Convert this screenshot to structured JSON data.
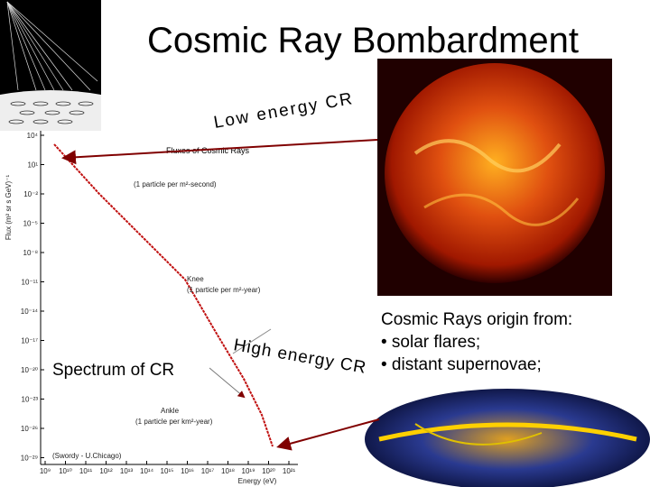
{
  "title": "Cosmic Ray Bombardment",
  "labels": {
    "low_energy": "Low energy CR",
    "high_energy": "High energy CR",
    "spectrum": "Spectrum of CR"
  },
  "origin": {
    "heading": "Cosmic Rays origin from:",
    "items": [
      "• solar flares;",
      "• distant supernovae;"
    ]
  },
  "spectrum_plot": {
    "title": "Fluxes of Cosmic Rays",
    "annotations": [
      "(1 particle per m²-second)",
      "Knee",
      "(1 particle per m²-year)",
      "Ankle",
      "(1 particle per km²-year)"
    ],
    "xlabel": "Energy (eV)",
    "ylabel": "Flux (m² sr s GeV)⁻¹",
    "credit": "(Swordy - U.Chicago)",
    "yticks": [
      "10⁴",
      "10¹",
      "10⁻²",
      "10⁻⁵",
      "10⁻⁸",
      "10⁻¹¹",
      "10⁻¹⁴",
      "10⁻¹⁷",
      "10⁻²⁰",
      "10⁻²³",
      "10⁻²⁶",
      "10⁻²⁹"
    ],
    "xticks": [
      "10⁹",
      "10¹⁰",
      "10¹¹",
      "10¹²",
      "10¹³",
      "10¹⁴",
      "10¹⁵",
      "10¹⁶",
      "10¹⁷",
      "10¹⁸",
      "10¹⁹",
      "10²⁰",
      "10²¹"
    ]
  }
}
